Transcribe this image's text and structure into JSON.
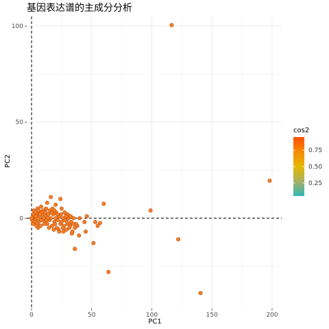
{
  "chart_data": {
    "type": "scatter",
    "title": "基因表达谱的主成分分析",
    "xlabel": "PC1",
    "ylabel": "PC2",
    "xlim": [
      -4,
      208
    ],
    "ylim": [
      -47,
      105
    ],
    "x_ticks": [
      0,
      50,
      100,
      150,
      200
    ],
    "y_ticks": [
      0,
      50,
      100
    ],
    "grid": true,
    "reference_lines": {
      "x": 0,
      "y": 0,
      "style": "dashed"
    },
    "point_color": "#FF7F24",
    "point_stroke": "#B5520F",
    "legend": {
      "title": "cos2",
      "ticks": [
        0.25,
        0.5,
        0.75
      ],
      "tick_labels": [
        "0.25",
        "0.50",
        "0.75"
      ],
      "range": [
        0.05,
        0.95
      ],
      "colors": [
        "#2EB8B8",
        "#A8B060",
        "#E7B800",
        "#F58A00",
        "#FC4E07"
      ],
      "position": "right"
    },
    "points": [
      [
        116.5,
        100.5
      ],
      [
        198,
        19.5
      ],
      [
        60,
        7.5
      ],
      [
        99,
        4
      ],
      [
        122,
        -11
      ],
      [
        64,
        -28
      ],
      [
        140.5,
        -39
      ],
      [
        51.5,
        -13
      ],
      [
        39.5,
        -9
      ],
      [
        36,
        -16
      ],
      [
        45,
        -7
      ],
      [
        53,
        -2
      ],
      [
        57,
        -2.5
      ],
      [
        55,
        -4
      ],
      [
        44,
        -2
      ],
      [
        40,
        0
      ],
      [
        46,
        1
      ],
      [
        38,
        -4
      ],
      [
        34,
        -7
      ],
      [
        16,
        11
      ],
      [
        24,
        10
      ],
      [
        13,
        8
      ],
      [
        8,
        6
      ],
      [
        5,
        5
      ],
      [
        12,
        5
      ],
      [
        20,
        7
      ],
      [
        25,
        5
      ],
      [
        30,
        2
      ],
      [
        1,
        0
      ],
      [
        2,
        1
      ],
      [
        3,
        -1
      ],
      [
        4,
        2
      ],
      [
        5,
        0
      ],
      [
        6,
        -2
      ],
      [
        7,
        1
      ],
      [
        8,
        -1
      ],
      [
        9,
        2
      ],
      [
        10,
        0
      ],
      [
        11,
        -2
      ],
      [
        12,
        1
      ],
      [
        13,
        -3
      ],
      [
        14,
        2
      ],
      [
        15,
        -1
      ],
      [
        16,
        0
      ],
      [
        17,
        -4
      ],
      [
        18,
        2
      ],
      [
        19,
        -2
      ],
      [
        20,
        0
      ],
      [
        21,
        -5
      ],
      [
        22,
        -1
      ],
      [
        23,
        1
      ],
      [
        24,
        -3
      ],
      [
        25,
        -2
      ],
      [
        26,
        0
      ],
      [
        27,
        -4
      ],
      [
        28,
        -1
      ],
      [
        29,
        -6
      ],
      [
        30,
        -3
      ],
      [
        31,
        0
      ],
      [
        32,
        -4
      ],
      [
        33,
        -2
      ],
      [
        35,
        0
      ],
      [
        36,
        -5
      ],
      [
        37,
        -3
      ],
      [
        0.5,
        -1
      ],
      [
        1.5,
        2
      ],
      [
        2.5,
        -2
      ],
      [
        3.5,
        1
      ],
      [
        4.5,
        -3
      ],
      [
        6.5,
        3
      ],
      [
        7.5,
        -4
      ],
      [
        9.5,
        4
      ],
      [
        10.5,
        -3
      ],
      [
        11.5,
        3
      ],
      [
        14.5,
        -5
      ],
      [
        16.5,
        3
      ],
      [
        18.5,
        -6
      ],
      [
        20.5,
        3
      ],
      [
        22.5,
        -6
      ],
      [
        24.5,
        2
      ],
      [
        26.5,
        -7
      ],
      [
        28.5,
        1
      ],
      [
        31.5,
        -5
      ],
      [
        33.5,
        -8
      ],
      [
        2,
        4
      ],
      [
        3,
        3
      ],
      [
        5.5,
        -5
      ],
      [
        6,
        4
      ],
      [
        8.5,
        3
      ],
      [
        15,
        4
      ],
      [
        17.5,
        5
      ],
      [
        19,
        4
      ],
      [
        21.5,
        2
      ],
      [
        23,
        -7
      ],
      [
        27.5,
        3
      ],
      [
        29.5,
        -2
      ],
      [
        32.5,
        1
      ],
      [
        34.5,
        -3
      ],
      [
        0,
        0
      ],
      [
        1,
        -3
      ],
      [
        4,
        -4
      ],
      [
        7,
        2
      ],
      [
        12.5,
        -1
      ],
      [
        13.5,
        0
      ],
      [
        19.5,
        -3
      ],
      [
        26,
        -5
      ]
    ]
  }
}
